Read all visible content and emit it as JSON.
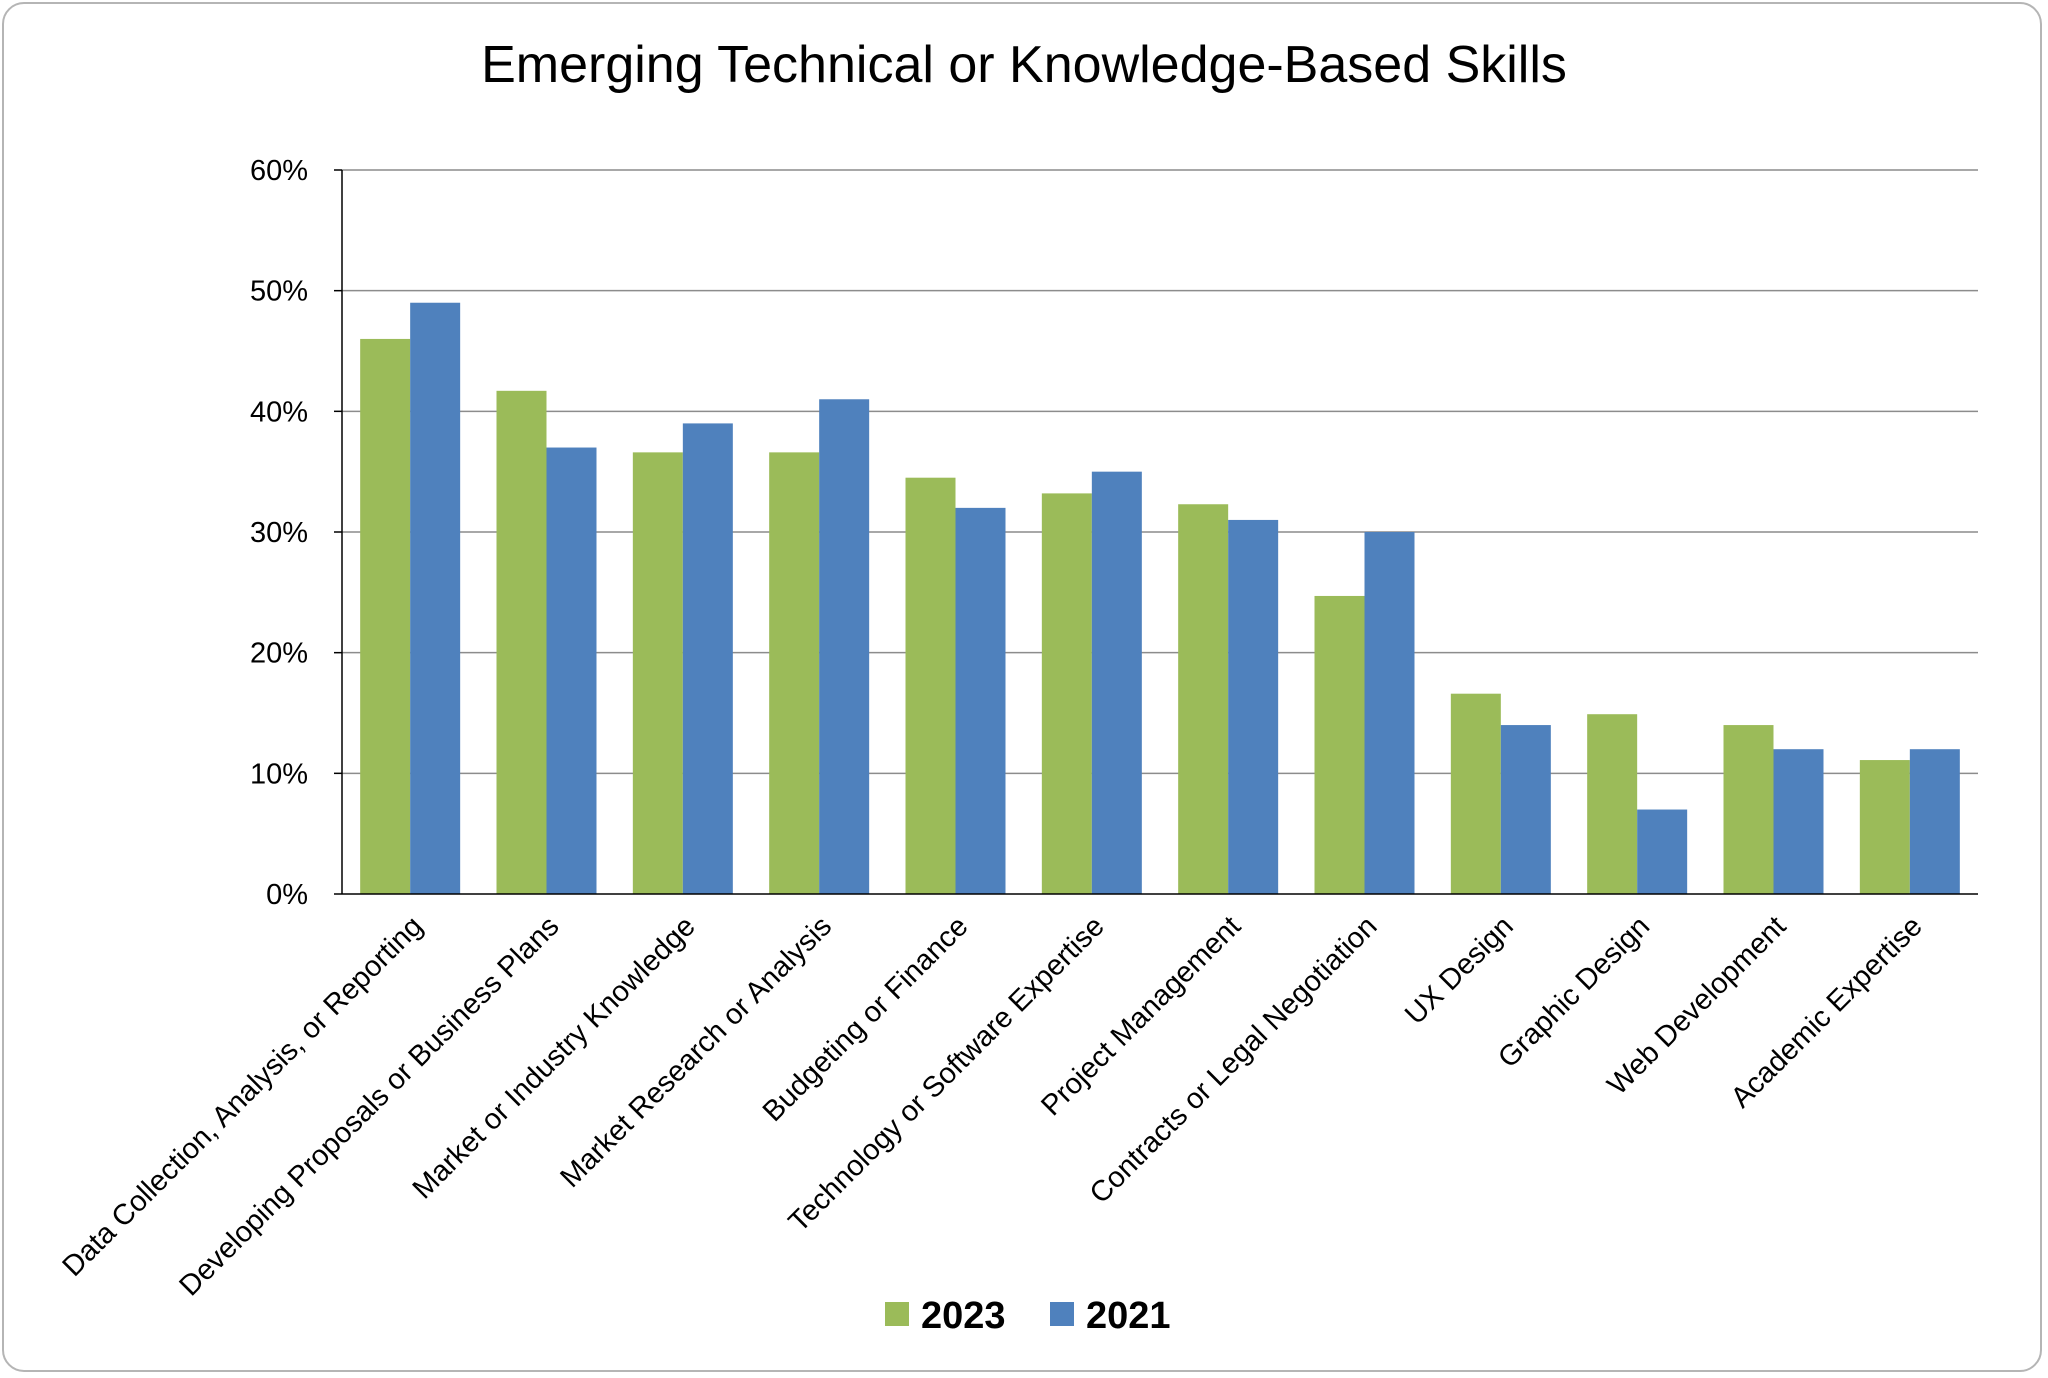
{
  "chart_data": {
    "type": "bar",
    "title": "Emerging Technical or Knowledge-Based Skills",
    "xlabel": "",
    "ylabel": "",
    "ylim": [
      0,
      60
    ],
    "yticks": [
      "0%",
      "10%",
      "20%",
      "30%",
      "40%",
      "50%",
      "60%"
    ],
    "ytick_values": [
      0,
      10,
      20,
      30,
      40,
      50,
      60
    ],
    "grid": true,
    "legend_position": "bottom",
    "categories": [
      "Data Collection, Analysis, or Reporting",
      "Developing Proposals or Business Plans",
      "Market or Industry Knowledge",
      "Market Research or Analysis",
      "Budgeting or Finance",
      "Technology or Software Expertise",
      "Project Management",
      "Contracts or Legal Negotiation",
      "UX Design",
      "Graphic Design",
      "Web Development",
      "Academic Expertise"
    ],
    "series": [
      {
        "name": "2023",
        "color": "#9bbb59",
        "values": [
          46,
          41.7,
          36.6,
          36.6,
          34.5,
          33.2,
          32.3,
          24.7,
          16.6,
          14.9,
          14,
          11.1
        ]
      },
      {
        "name": "2021",
        "color": "#4f81bd",
        "values": [
          49,
          37,
          39,
          41,
          32,
          35,
          31,
          30,
          14,
          7,
          12,
          12
        ]
      }
    ]
  }
}
